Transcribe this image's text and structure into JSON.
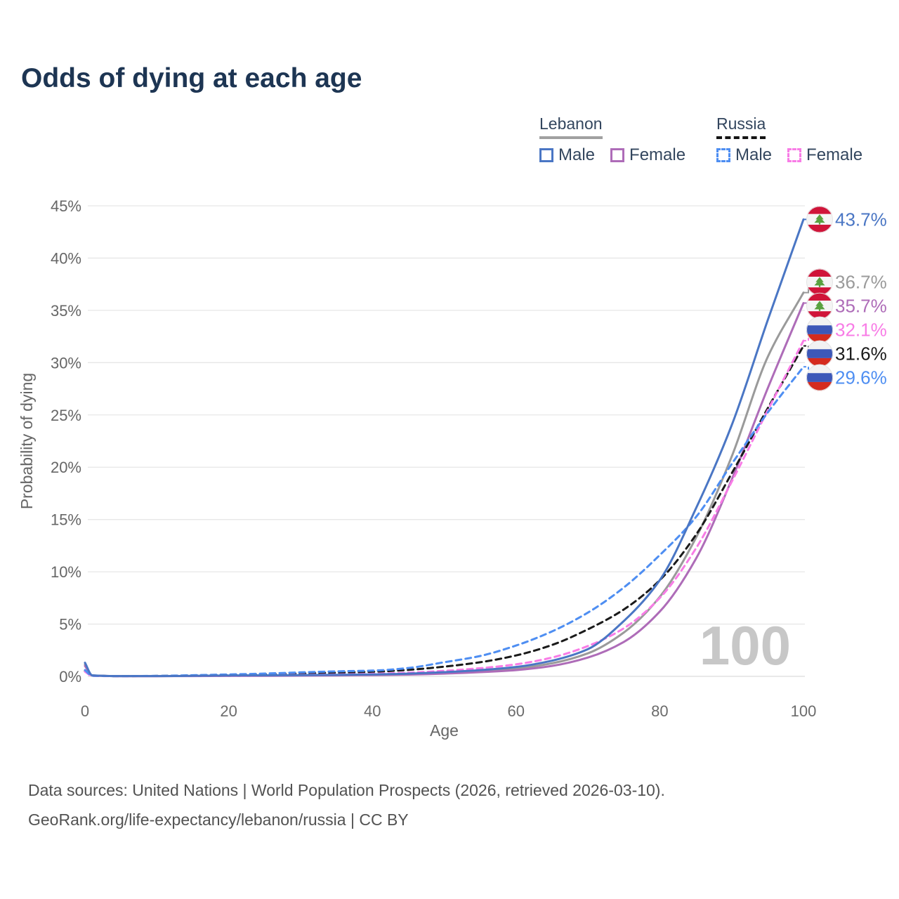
{
  "title": "Odds of dying at each age",
  "legend": {
    "groups": [
      {
        "label": "Lebanon",
        "style": "solid",
        "underline_color": "#a0a0a0"
      },
      {
        "label": "Russia",
        "style": "dashed",
        "underline_color": "#141414"
      }
    ],
    "items": [
      {
        "label": "Male",
        "color": "#4a76c4",
        "dash": false
      },
      {
        "label": "Female",
        "color": "#ae6cb8",
        "dash": false
      },
      {
        "label": "Male",
        "color": "#4e8ef2",
        "dash": true
      },
      {
        "label": "Female",
        "color": "#f87ce6",
        "dash": true
      }
    ]
  },
  "footer": {
    "line1": "Data sources: United Nations | World Population Prospects (2026, retrieved 2026-03-10).",
    "line2": "GeoRank.org/life-expectancy/lebanon/russia | CC BY"
  },
  "chart_data": {
    "type": "line",
    "title": "Odds of dying at each age",
    "xlabel": "Age",
    "ylabel": "Probability of dying",
    "xlim": [
      0,
      100
    ],
    "ylim": [
      0,
      45
    ],
    "x_ticks": [
      0,
      20,
      40,
      60,
      80,
      100
    ],
    "y_tick_step": 5,
    "y_tick_suffix": "%",
    "grid": "horizontal",
    "legend_position": "top-right",
    "watermark_label": "100",
    "ages": [
      0,
      1,
      5,
      10,
      15,
      20,
      25,
      30,
      35,
      40,
      45,
      50,
      55,
      60,
      65,
      70,
      75,
      80,
      85,
      90,
      95,
      100
    ],
    "series": [
      {
        "name": "Lebanon Both sexes",
        "country": "Lebanon",
        "sex": "Both",
        "style": "solid",
        "color": "#9a9a9a",
        "flag": "lebanon",
        "end_label": "36.7%",
        "end_value": 36.7,
        "values": [
          1.15,
          0.09,
          0.03,
          0.03,
          0.04,
          0.06,
          0.08,
          0.1,
          0.12,
          0.15,
          0.22,
          0.33,
          0.5,
          0.75,
          1.25,
          2.2,
          4.2,
          7.6,
          13.2,
          21.0,
          30.5,
          36.7
        ]
      },
      {
        "name": "Lebanon Female",
        "country": "Lebanon",
        "sex": "Female",
        "style": "solid",
        "color": "#ae6cb8",
        "flag": "lebanon",
        "end_label": "35.7%",
        "end_value": 35.7,
        "values": [
          1.0,
          0.08,
          0.02,
          0.02,
          0.03,
          0.04,
          0.05,
          0.07,
          0.09,
          0.12,
          0.17,
          0.26,
          0.4,
          0.6,
          1.0,
          1.8,
          3.3,
          6.2,
          11.2,
          18.8,
          27.5,
          35.7
        ]
      },
      {
        "name": "Russia Both sexes",
        "country": "Russia",
        "sex": "Both",
        "style": "dashed",
        "color": "#1a1a1a",
        "flag": "russia",
        "end_label": "31.6%",
        "end_value": 31.6,
        "values": [
          0.52,
          0.06,
          0.03,
          0.04,
          0.08,
          0.12,
          0.18,
          0.27,
          0.35,
          0.44,
          0.62,
          0.93,
          1.35,
          2.0,
          3.0,
          4.5,
          6.4,
          9.2,
          13.5,
          19.4,
          25.6,
          31.6
        ]
      },
      {
        "name": "Russia Female",
        "country": "Russia",
        "sex": "Female",
        "style": "dashed",
        "color": "#f87ce6",
        "flag": "russia",
        "end_label": "32.1%",
        "end_value": 32.1,
        "values": [
          0.45,
          0.05,
          0.02,
          0.03,
          0.05,
          0.07,
          0.1,
          0.14,
          0.18,
          0.24,
          0.35,
          0.53,
          0.78,
          1.15,
          1.8,
          2.9,
          4.6,
          7.5,
          12.2,
          18.6,
          25.4,
          32.1
        ]
      },
      {
        "name": "Russia Male",
        "country": "Russia",
        "sex": "Male",
        "style": "dashed",
        "color": "#4e8ef2",
        "flag": "russia",
        "end_label": "29.6%",
        "end_value": 29.6,
        "values": [
          0.6,
          0.06,
          0.03,
          0.05,
          0.11,
          0.18,
          0.27,
          0.38,
          0.48,
          0.55,
          0.8,
          1.35,
          1.95,
          2.95,
          4.3,
          6.1,
          8.5,
          11.6,
          15.2,
          20.3,
          25.2,
          29.6
        ]
      },
      {
        "name": "Lebanon Male",
        "country": "Lebanon",
        "sex": "Male",
        "style": "solid",
        "color": "#4a76c4",
        "flag": "lebanon",
        "end_label": "43.7%",
        "end_value": 43.7,
        "values": [
          1.3,
          0.1,
          0.03,
          0.03,
          0.05,
          0.08,
          0.1,
          0.12,
          0.14,
          0.18,
          0.26,
          0.4,
          0.6,
          0.9,
          1.5,
          2.6,
          5.3,
          9.2,
          16.0,
          24.0,
          34.0,
          43.7
        ]
      }
    ],
    "flag_colors": {
      "lebanon": {
        "red": "#d01439",
        "white": "#f5f5f5",
        "green": "#59a13f"
      },
      "russia": {
        "white": "#f2f2f2",
        "blue": "#3d58b8",
        "red": "#d52b1e"
      }
    }
  }
}
